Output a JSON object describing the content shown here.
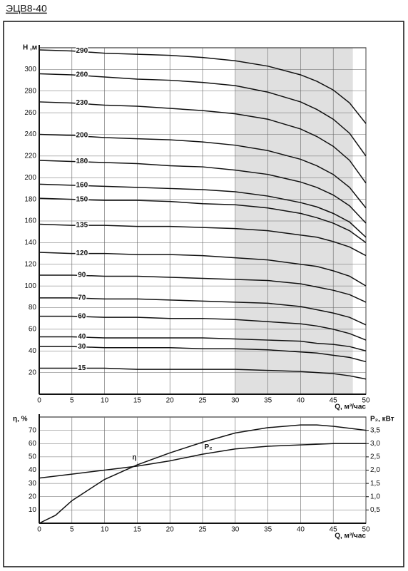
{
  "chart_data": [
    {
      "type": "line",
      "title": "ЭЦВ8-40",
      "y_label": "Н ,м",
      "x_label": "Q, м³/час",
      "x": [
        0,
        5,
        10,
        15,
        20,
        25,
        30,
        35,
        40,
        42.5,
        45,
        47.5,
        50
      ],
      "xlim": [
        0,
        50
      ],
      "xticks": [
        0,
        5,
        10,
        15,
        20,
        25,
        30,
        35,
        40,
        45,
        50
      ],
      "ylim": [
        0,
        320
      ],
      "yticks": [
        20,
        40,
        60,
        80,
        100,
        120,
        140,
        160,
        180,
        200,
        220,
        240,
        260,
        280,
        300
      ],
      "grid": true,
      "shaded_range": [
        30,
        48
      ],
      "shade_color": "#e0e0e0",
      "series": [
        {
          "name": "290",
          "color": "#111",
          "values": [
            318,
            317,
            315,
            314,
            313,
            311,
            308,
            303,
            295,
            289,
            281,
            269,
            250
          ]
        },
        {
          "name": "260",
          "color": "#111",
          "values": [
            296,
            295,
            293,
            291,
            290,
            288,
            285,
            279,
            270,
            263,
            254,
            241,
            220
          ]
        },
        {
          "name": "230",
          "color": "#111",
          "values": [
            270,
            269,
            267,
            266,
            264,
            262,
            259,
            254,
            245,
            238,
            229,
            216,
            195
          ]
        },
        {
          "name": "200",
          "color": "#111",
          "values": [
            240,
            239,
            237,
            236,
            235,
            233,
            230,
            225,
            217,
            211,
            203,
            191,
            172
          ]
        },
        {
          "name": "180",
          "color": "#111",
          "values": [
            216,
            215,
            214,
            213,
            211,
            210,
            207,
            203,
            196,
            191,
            184,
            174,
            158
          ]
        },
        {
          "name": "160",
          "color": "#111",
          "values": [
            194,
            193,
            192,
            191,
            190,
            189,
            187,
            183,
            177,
            173,
            167,
            159,
            145
          ]
        },
        {
          "name": "150",
          "color": "#111",
          "values": [
            181,
            180,
            179,
            179,
            178,
            176,
            175,
            172,
            167,
            163,
            158,
            151,
            140
          ]
        },
        {
          "name": "135",
          "color": "#111",
          "values": [
            157,
            156,
            156,
            155,
            155,
            154,
            153,
            151,
            147,
            145,
            141,
            136,
            128
          ]
        },
        {
          "name": "120",
          "color": "#111",
          "values": [
            131,
            130,
            130,
            129,
            129,
            128,
            126,
            124,
            120,
            118,
            114,
            109,
            100
          ]
        },
        {
          "name": "90",
          "color": "#111",
          "values": [
            110,
            110,
            109,
            109,
            108,
            107,
            106,
            105,
            102,
            99,
            96,
            92,
            85
          ]
        },
        {
          "name": "70",
          "color": "#111",
          "values": [
            89,
            89,
            88,
            88,
            87,
            86,
            85,
            84,
            81,
            78,
            75,
            71,
            64
          ]
        },
        {
          "name": "60",
          "color": "#111",
          "values": [
            72,
            72,
            71,
            71,
            70,
            70,
            69,
            67,
            65,
            63,
            60,
            56,
            50
          ]
        },
        {
          "name": "40",
          "color": "#111",
          "values": [
            53,
            53,
            52,
            52,
            52,
            52,
            51,
            50,
            49,
            47,
            46,
            44,
            40
          ]
        },
        {
          "name": "30",
          "color": "#111",
          "values": [
            44,
            44,
            43,
            43,
            43,
            42,
            42,
            41,
            39,
            38,
            36,
            34,
            30
          ]
        },
        {
          "name": "15",
          "color": "#111",
          "values": [
            24,
            24,
            24,
            23,
            23,
            23,
            23,
            22,
            21,
            20,
            19,
            17,
            14
          ]
        }
      ]
    },
    {
      "type": "line",
      "y_label": "η, %",
      "y2_label": "P₂, кВт",
      "x_label": "Q, м³/час",
      "xlim": [
        0,
        50
      ],
      "xticks": [
        0,
        5,
        10,
        15,
        20,
        25,
        30,
        35,
        40,
        45,
        50
      ],
      "ylim": [
        0,
        80
      ],
      "yticks": [
        10,
        20,
        30,
        40,
        50,
        60,
        70
      ],
      "y2lim": [
        0,
        4
      ],
      "y2ticks": [
        {
          "value": 0.5,
          "label": "0,5"
        },
        {
          "value": 1,
          "label": "1,0"
        },
        {
          "value": 1.5,
          "label": "1,5"
        },
        {
          "value": 2,
          "label": "2,0"
        },
        {
          "value": 2.5,
          "label": "2,5"
        },
        {
          "value": 3,
          "label": "3,0"
        },
        {
          "value": 3.5,
          "label": "3,5"
        }
      ],
      "grid": true,
      "series": [
        {
          "name": "η",
          "color": "#111",
          "x": [
            0,
            2.5,
            5,
            10,
            15,
            20,
            25,
            30,
            35,
            40,
            42.5,
            45,
            50
          ],
          "values": [
            0,
            6,
            17,
            33,
            44,
            53,
            61,
            68,
            72,
            74,
            74,
            73,
            70
          ]
        },
        {
          "name": "P₂",
          "color": "#111",
          "axis": "y2",
          "x": [
            0,
            5,
            10,
            15,
            20,
            25,
            30,
            35,
            40,
            45,
            50
          ],
          "values": [
            1.7,
            1.85,
            2,
            2.15,
            2.35,
            2.6,
            2.8,
            2.9,
            2.95,
            3,
            3
          ]
        }
      ]
    }
  ]
}
